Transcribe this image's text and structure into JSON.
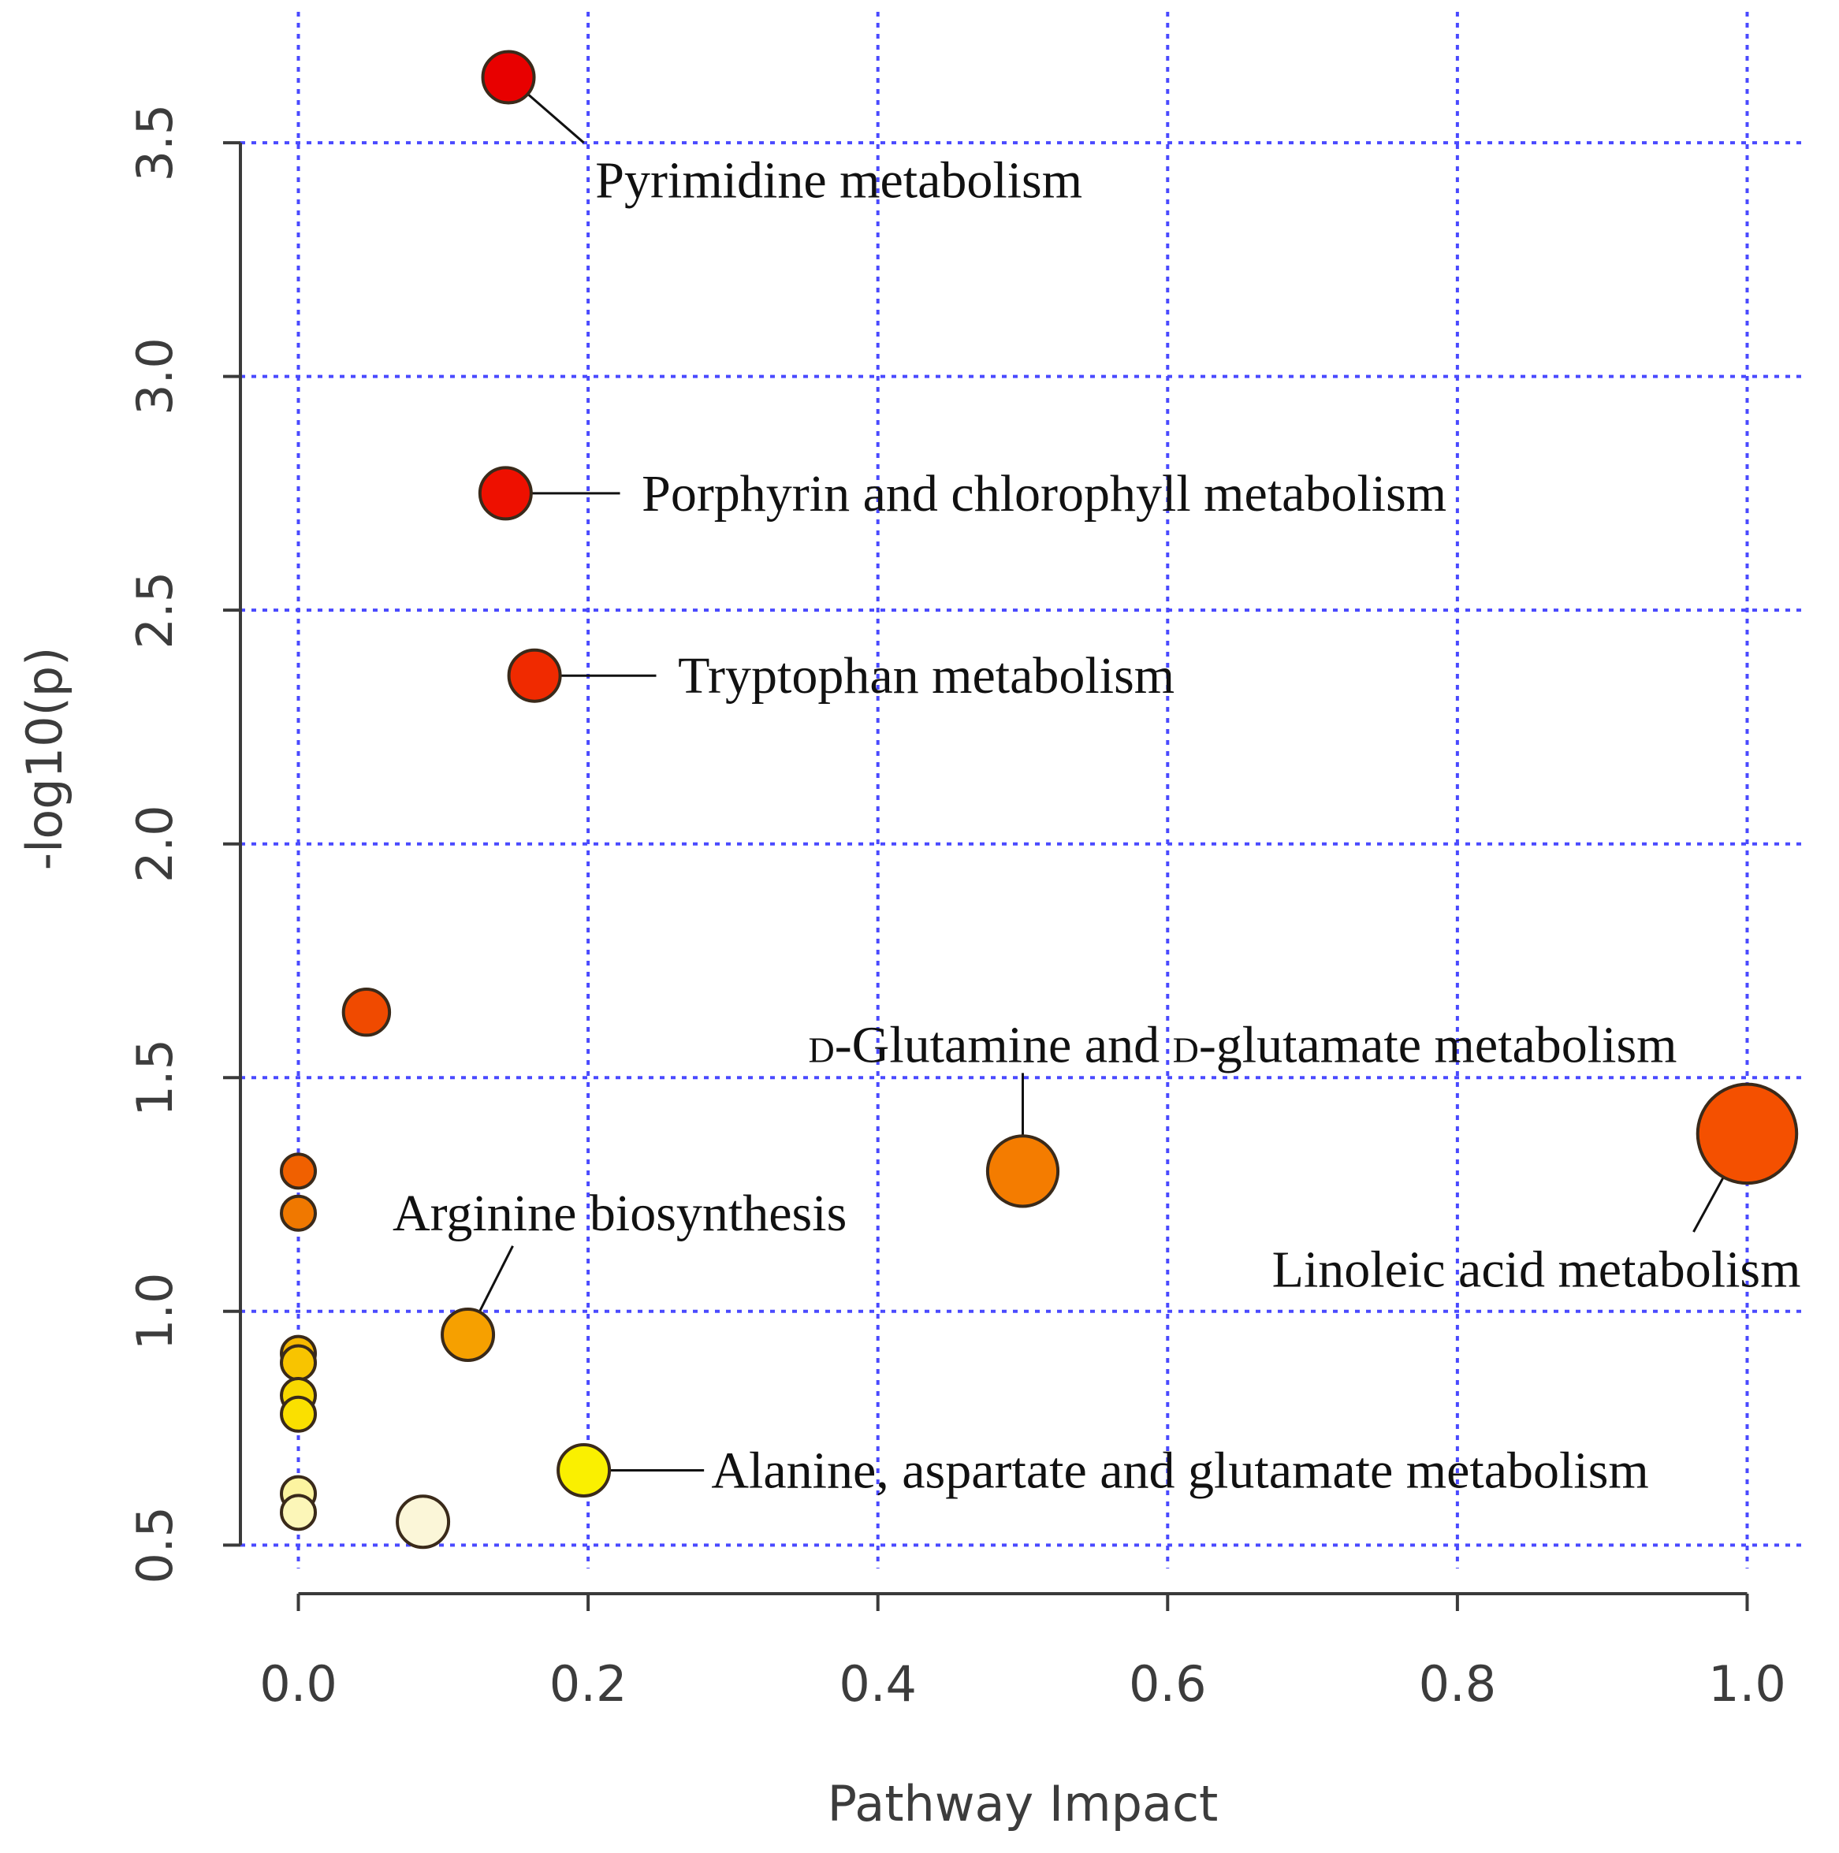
{
  "chart_data": {
    "type": "scatter",
    "title": "",
    "xlabel": "Pathway Impact",
    "ylabel": "-log10(p)",
    "xlim": [
      -0.04,
      1.04
    ],
    "ylim": [
      0.45,
      3.78
    ],
    "x_ticks": [
      "0.0",
      "0.2",
      "0.4",
      "0.6",
      "0.8",
      "1.0"
    ],
    "y_ticks": [
      "0.5",
      "1.0",
      "1.5",
      "2.0",
      "2.5",
      "3.0",
      "3.5"
    ],
    "grid": true,
    "points": [
      {
        "x": 0.145,
        "y": 3.64,
        "size": 0.3,
        "color": "#e80000",
        "label": "Pyrimidine metabolism"
      },
      {
        "x": 0.143,
        "y": 2.75,
        "size": 0.3,
        "color": "#ee1000",
        "label": "Porphyrin and chlorophyll metabolism"
      },
      {
        "x": 0.163,
        "y": 2.36,
        "size": 0.3,
        "color": "#f02a00",
        "label": "Tryptophan metabolism"
      },
      {
        "x": 0.047,
        "y": 1.64,
        "size": 0.24,
        "color": "#f04a00",
        "label": ""
      },
      {
        "x": 0.0,
        "y": 1.3,
        "size": 0.1,
        "color": "#f06000",
        "label": ""
      },
      {
        "x": 0.0,
        "y": 1.21,
        "size": 0.1,
        "color": "#f07800",
        "label": ""
      },
      {
        "x": 0.5,
        "y": 1.3,
        "size": 0.52,
        "color": "#f47c00",
        "label": "D-Glutamine and D-glutamate metabolism"
      },
      {
        "x": 1.0,
        "y": 1.38,
        "size": 0.85,
        "color": "#f45000",
        "label": "Linoleic acid metabolism"
      },
      {
        "x": 0.117,
        "y": 0.95,
        "size": 0.3,
        "color": "#f6a000",
        "label": "Arginine biosynthesis"
      },
      {
        "x": 0.0,
        "y": 0.91,
        "size": 0.1,
        "color": "#f6b800",
        "label": ""
      },
      {
        "x": 0.0,
        "y": 0.89,
        "size": 0.1,
        "color": "#f8c400",
        "label": ""
      },
      {
        "x": 0.0,
        "y": 0.82,
        "size": 0.1,
        "color": "#f8d800",
        "label": ""
      },
      {
        "x": 0.0,
        "y": 0.78,
        "size": 0.1,
        "color": "#fae000",
        "label": ""
      },
      {
        "x": 0.197,
        "y": 0.66,
        "size": 0.3,
        "color": "#faf000",
        "label": "Alanine, aspartate and glutamate metabolism"
      },
      {
        "x": 0.0,
        "y": 0.61,
        "size": 0.1,
        "color": "#fcf4a0",
        "label": ""
      },
      {
        "x": 0.0,
        "y": 0.57,
        "size": 0.1,
        "color": "#fcf6b8",
        "label": ""
      },
      {
        "x": 0.086,
        "y": 0.55,
        "size": 0.3,
        "color": "#fbf6d8",
        "label": ""
      }
    ],
    "annotations": [
      {
        "text": "Pyrimidine metabolism",
        "x": 0.205,
        "y": 3.42
      },
      {
        "text": "Porphyrin and chlorophyll metabolism",
        "x": 0.237,
        "y": 2.75
      },
      {
        "text": "Tryptophan metabolism",
        "x": 0.262,
        "y": 2.36
      },
      {
        "prefix": "D",
        "text": "-Glutamine and ",
        "prefix2": "D",
        "text2": "-glutamate metabolism",
        "x": 0.352,
        "y": 1.57
      },
      {
        "text": "Arginine biosynthesis",
        "x": 0.065,
        "y": 1.21
      },
      {
        "text": "Linoleic acid metabolism",
        "x": 0.672,
        "y": 1.09
      },
      {
        "text": "Alanine, aspartate and glutamate metabolism",
        "x": 0.285,
        "y": 0.66
      }
    ]
  }
}
